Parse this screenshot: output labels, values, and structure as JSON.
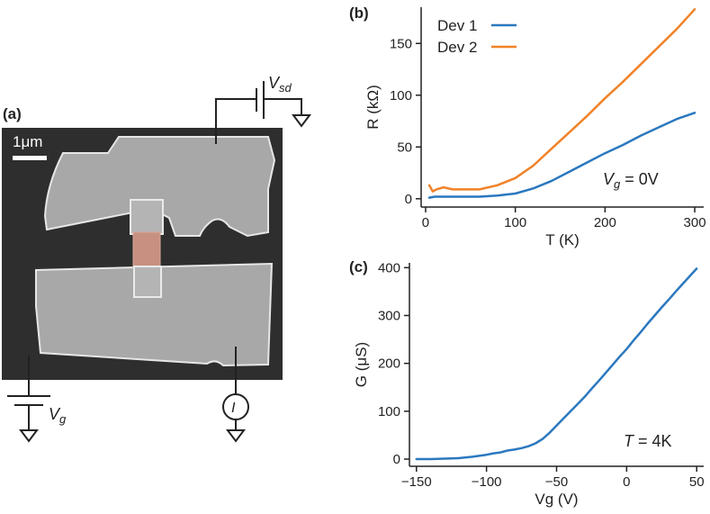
{
  "panels": {
    "a": {
      "letter": "(a)",
      "scale_bar_label": "1μm",
      "vsd_label": "V",
      "vsd_sub": "sd",
      "vg_label": "V",
      "vg_sub": "g",
      "current_label": "I"
    },
    "b": {
      "letter": "(b)",
      "annotation": "V",
      "annotation_sub": "g",
      "annotation_rest": " = 0V"
    },
    "c": {
      "letter": "(c)",
      "annotation": "T",
      "annotation_rest": " = 4K"
    }
  },
  "colors": {
    "dev1": "#2b78bf",
    "dev2": "#f08228",
    "device_channel": "#c89080",
    "sem_background": "#2e2e2e"
  },
  "chart_data": [
    {
      "id": "b",
      "type": "line",
      "xlabel": "T (K)",
      "ylabel": "R (kΩ)",
      "xlim": [
        -5,
        310
      ],
      "ylim": [
        -8,
        185
      ],
      "xticks": [
        0,
        100,
        200,
        300
      ],
      "yticks": [
        0,
        50,
        100,
        150
      ],
      "legend_placement": "top-left",
      "series": [
        {
          "name": "Dev 1",
          "color": "#2b78bf",
          "x": [
            4,
            10,
            20,
            40,
            60,
            80,
            100,
            120,
            140,
            160,
            180,
            200,
            220,
            240,
            260,
            280,
            300
          ],
          "y": [
            1,
            2,
            2,
            2,
            2,
            3,
            5,
            10,
            17,
            26,
            35,
            44,
            52,
            61,
            69,
            77,
            83
          ]
        },
        {
          "name": "Dev 2",
          "color": "#f08228",
          "x": [
            4,
            8,
            12,
            20,
            30,
            40,
            60,
            80,
            100,
            120,
            140,
            160,
            180,
            200,
            220,
            240,
            260,
            280,
            300
          ],
          "y": [
            13,
            7,
            9,
            11,
            9,
            9,
            9,
            13,
            20,
            32,
            48,
            64,
            80,
            97,
            113,
            130,
            147,
            164,
            183
          ]
        }
      ]
    },
    {
      "id": "c",
      "type": "line",
      "xlabel": "Vg (V)",
      "ylabel": "G (μS)",
      "xlim": [
        -155,
        55
      ],
      "ylim": [
        -15,
        410
      ],
      "xticks": [
        -150,
        -100,
        -50,
        0,
        50
      ],
      "yticks": [
        0,
        100,
        200,
        300,
        400
      ],
      "series": [
        {
          "name": "",
          "color": "#2b78bf",
          "x": [
            -150,
            -140,
            -130,
            -120,
            -110,
            -100,
            -95,
            -90,
            -85,
            -80,
            -75,
            -70,
            -65,
            -60,
            -55,
            -50,
            -45,
            -40,
            -35,
            -30,
            -25,
            -20,
            -15,
            -10,
            -5,
            0,
            5,
            10,
            15,
            20,
            25,
            30,
            35,
            40,
            45,
            50
          ],
          "y": [
            0,
            0,
            1,
            2,
            5,
            9,
            12,
            14,
            18,
            20,
            23,
            27,
            33,
            42,
            55,
            70,
            85,
            100,
            115,
            130,
            147,
            163,
            180,
            197,
            214,
            230,
            248,
            265,
            283,
            300,
            317,
            333,
            350,
            366,
            382,
            398
          ]
        }
      ]
    }
  ]
}
